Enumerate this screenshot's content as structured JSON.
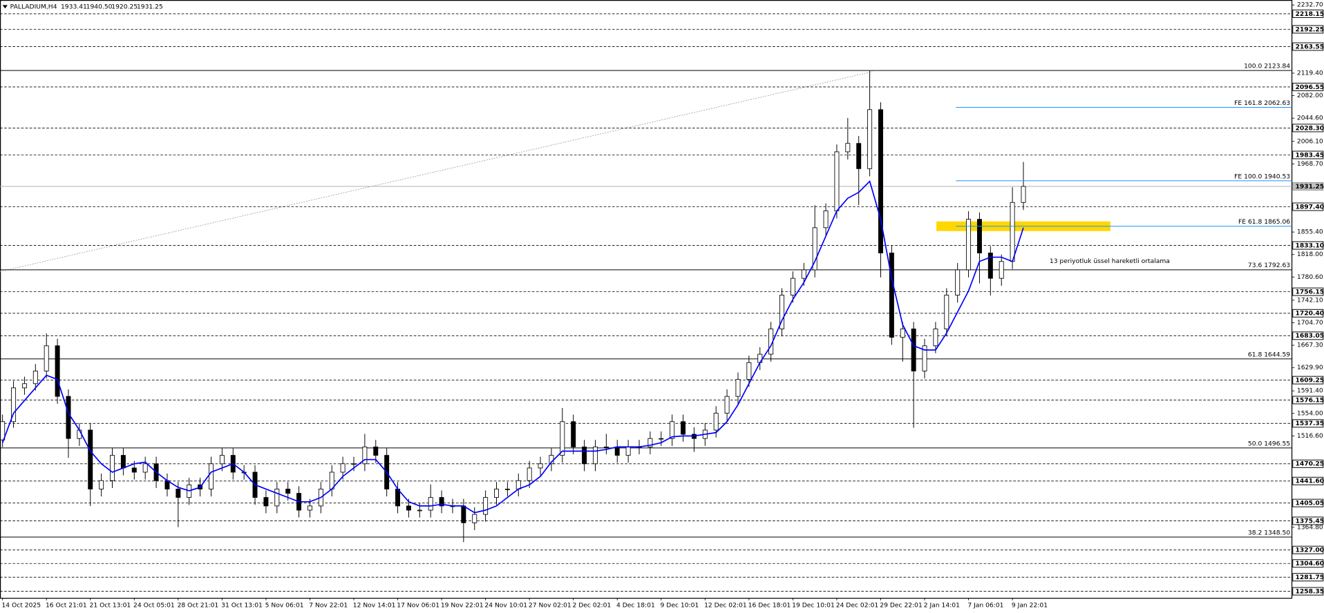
{
  "chart_data": {
    "type": "candlestick",
    "title": "PALLADIUM,H4",
    "header_values": [
      {
        "value": 1933.41,
        "label": "1933.41"
      },
      {
        "value": 1940.5,
        "label": "1940.50"
      },
      {
        "value": 1920.25,
        "label": "1920.25"
      },
      {
        "value": 1931.25,
        "label": "1931.25"
      }
    ],
    "categories": [
      "14 Oct 2025",
      null,
      null,
      null,
      "16 Oct 21:01",
      null,
      null,
      null,
      "21 Oct 13:01",
      null,
      null,
      null,
      "24 Oct 05:01",
      null,
      null,
      null,
      "28 Oct 21:01",
      null,
      null,
      null,
      "31 Oct 13:01",
      null,
      null,
      null,
      "5 Nov 06:01",
      null,
      null,
      null,
      "7 Nov 22:01",
      null,
      null,
      null,
      "12 Nov 14:01",
      null,
      null,
      null,
      "17 Nov 06:01",
      null,
      null,
      null,
      "19 Nov 22:01",
      null,
      null,
      null,
      "24 Nov 10:01",
      null,
      null,
      null,
      "27 Nov 02:01",
      null,
      null,
      null,
      "2 Dec 02:01",
      null,
      null,
      null,
      "4 Dec 18:01",
      null,
      null,
      null,
      "9 Dec 10:01",
      null,
      null,
      null,
      "12 Dec 02:01",
      null,
      null,
      null,
      "16 Dec 18:01",
      null,
      null,
      null,
      "19 Dec 10:01",
      null,
      null,
      null,
      "24 Dec 02:01",
      null,
      null,
      null,
      "29 Dec 22:01",
      null,
      null,
      null,
      "2 Jan 14:01",
      null,
      null,
      null,
      "7 Jan 06:01",
      null,
      null,
      null,
      "9 Jan 22:01",
      null
    ],
    "open": [
      1510,
      1540.3,
      1596.4,
      1603.4,
      1624.4,
      1666.4,
      1582.3,
      1512.3,
      1526.3,
      1428.3,
      1442.3,
      1484.3,
      1463.3,
      1456.3,
      1470.3,
      1442.3,
      1428.3,
      1414.3,
      1435.3,
      1428.3,
      1470.3,
      1484.3,
      1456.3,
      1456.3,
      1414.3,
      1400.2,
      1428.3,
      1421.2,
      1393.2,
      1400.2,
      1428.3,
      1456.3,
      1470.3,
      1470.3,
      1498.3,
      1484.3,
      1428.3,
      1400.2,
      1393.2,
      1393.2,
      1414.3,
      1400.2,
      1400.2,
      1372.2,
      1386.2,
      1414.3,
      1428.3,
      1428.3,
      1442.3,
      1463.3,
      1470.3,
      1484.3,
      1540.3,
      1498.3,
      1470.3,
      1498.3,
      1498.3,
      1484.3,
      1498.3,
      1498.3,
      1512.3,
      1512.3,
      1540.3,
      1519.3,
      1512.3,
      1526.3,
      1554.3,
      1582.3,
      1610.4,
      1638.4,
      1652.4,
      1694.4,
      1750.5,
      1778.5,
      1792.5,
      1862.6,
      1890.6,
      1988.7,
      2002.7,
      1960.7,
      2058.8,
      1820.6,
      1680.4,
      1694.4,
      1624.4,
      1666.4,
      1694.4,
      1750.5,
      1792.5,
      1876.6,
      1820.6,
      1778.5,
      1806.5,
      1904.6
    ],
    "high": [
      1552,
      1608,
      1615,
      1636,
      1687,
      1678,
      1594,
      1538,
      1538,
      1454,
      1496,
      1496,
      1475,
      1482,
      1482,
      1454,
      1440,
      1447,
      1447,
      1482,
      1496,
      1496,
      1468,
      1468,
      1426,
      1440,
      1440,
      1433,
      1412,
      1440,
      1468,
      1482,
      1482,
      1520,
      1510,
      1496,
      1440,
      1412,
      1405,
      1436,
      1426,
      1412,
      1412,
      1398,
      1426,
      1440,
      1440,
      1454,
      1475,
      1482,
      1496,
      1563,
      1552,
      1510,
      1510,
      1520,
      1510,
      1510,
      1510,
      1524,
      1524,
      1552,
      1552,
      1531,
      1538,
      1566,
      1594,
      1622,
      1650,
      1664,
      1706,
      1762,
      1790,
      1804,
      1900,
      1903,
      2001,
      2045,
      2015,
      2124,
      2071,
      1833,
      1706,
      1706,
      1678,
      1706,
      1762,
      1804,
      1890,
      1888,
      1832,
      1818,
      1930,
      1972
    ],
    "low": [
      1498,
      1530,
      1585,
      1592,
      1612,
      1570,
      1480,
      1500,
      1400,
      1416,
      1430,
      1451,
      1444,
      1444,
      1430,
      1416,
      1365,
      1402,
      1416,
      1416,
      1458,
      1444,
      1444,
      1402,
      1388,
      1388,
      1409,
      1381,
      1381,
      1388,
      1416,
      1444,
      1458,
      1458,
      1472,
      1416,
      1388,
      1381,
      1381,
      1381,
      1388,
      1388,
      1340,
      1360,
      1374,
      1402,
      1416,
      1416,
      1430,
      1451,
      1458,
      1472,
      1486,
      1458,
      1458,
      1486,
      1472,
      1472,
      1486,
      1486,
      1500,
      1500,
      1507,
      1490,
      1500,
      1514,
      1542,
      1570,
      1598,
      1626,
      1640,
      1682,
      1738,
      1766,
      1780,
      1850,
      1878,
      1976,
      1900,
      1948,
      1780,
      1668,
      1640,
      1530,
      1612,
      1654,
      1682,
      1738,
      1780,
      1770,
      1750,
      1766,
      1794,
      1892
    ],
    "close": [
      1540.3,
      1596.4,
      1603.4,
      1624.4,
      1666.4,
      1582.3,
      1512.3,
      1526.3,
      1428.3,
      1442.3,
      1484.3,
      1463.3,
      1456.3,
      1470.3,
      1442.3,
      1428.3,
      1414.3,
      1435.3,
      1428.3,
      1470.3,
      1484.3,
      1456.3,
      1456.3,
      1414.3,
      1400.2,
      1428.3,
      1421.2,
      1393.2,
      1400.2,
      1428.3,
      1456.3,
      1470.3,
      1470.3,
      1498.3,
      1484.3,
      1428.3,
      1400.2,
      1393.2,
      1393.2,
      1414.3,
      1400.2,
      1400.2,
      1372.2,
      1386.2,
      1414.3,
      1428.3,
      1428.3,
      1442.3,
      1463.3,
      1470.3,
      1484.3,
      1540.3,
      1498.3,
      1470.3,
      1498.3,
      1498.3,
      1484.3,
      1498.3,
      1498.3,
      1512.3,
      1512.3,
      1540.3,
      1519.3,
      1512.3,
      1526.3,
      1554.3,
      1582.3,
      1610.4,
      1638.4,
      1652.4,
      1694.4,
      1750.5,
      1778.5,
      1792.5,
      1862.6,
      1890.6,
      1988.7,
      2002.7,
      1960.7,
      2058.8,
      1820.6,
      1680.4,
      1694.4,
      1624.4,
      1666.4,
      1694.4,
      1750.5,
      1792.5,
      1876.6,
      1820.6,
      1778.5,
      1806.5,
      1904.6,
      1931.25
    ],
    "candle_color": "#000000",
    "ema": {
      "name": "13 periyotluk üssel hareketli ortalama",
      "color": "#0000ff",
      "values": [
        1505.3,
        1554.3,
        1575.4,
        1596.4,
        1617.4,
        1610.4,
        1554.3,
        1526.3,
        1491.3,
        1470.3,
        1456.3,
        1463.3,
        1470.3,
        1473.1,
        1456.3,
        1442.3,
        1431.1,
        1425.4,
        1431.1,
        1456.3,
        1463.3,
        1470.3,
        1456.3,
        1435.3,
        1428.3,
        1421.2,
        1414.3,
        1407.2,
        1407.2,
        1414.3,
        1428.3,
        1449.3,
        1463.3,
        1477.3,
        1477.3,
        1456.3,
        1428.3,
        1407.2,
        1400.2,
        1400.2,
        1403.0,
        1400.2,
        1400.2,
        1389.0,
        1393.2,
        1400.2,
        1414.3,
        1428.3,
        1435.3,
        1449.3,
        1473.1,
        1491.3,
        1491.3,
        1491.3,
        1491.3,
        1494.1,
        1498.3,
        1498.3,
        1498.3,
        1501.1,
        1505.3,
        1515.1,
        1516.5,
        1516.5,
        1519.3,
        1522.1,
        1540.3,
        1568.4,
        1603.4,
        1638.4,
        1666.4,
        1708.5,
        1743.5,
        1771.5,
        1806.5,
        1848.6,
        1890.6,
        1911.6,
        1921.4,
        1939.7,
        1876.6,
        1778.5,
        1701.5,
        1666.4,
        1659.4,
        1659.4,
        1687.4,
        1722.5,
        1757.5,
        1806.5,
        1813.6,
        1813.6,
        1806.5,
        1862.6
      ]
    },
    "ylim": [
      1247.5,
      2241
    ],
    "yticks": [
      {
        "value": 2232.7,
        "label": "2232.70"
      },
      {
        "value": 2119.4,
        "label": "2119.40"
      },
      {
        "value": 2082,
        "label": "2082.00"
      },
      {
        "value": 2044.6,
        "label": "2044.60"
      },
      {
        "value": 2006.1,
        "label": "2006.10"
      },
      {
        "value": 1968.7,
        "label": "1968.70"
      },
      {
        "value": 1855.4,
        "label": "1855.40"
      },
      {
        "value": 1818,
        "label": "1818.00"
      },
      {
        "value": 1780.6,
        "label": "1780.60"
      },
      {
        "value": 1742.1,
        "label": "1742.10"
      },
      {
        "value": 1704.7,
        "label": "1704.70"
      },
      {
        "value": 1667.3,
        "label": "1667.30"
      },
      {
        "value": 1629.9,
        "label": "1629.90"
      },
      {
        "value": 1591.4,
        "label": "1591.40"
      },
      {
        "value": 1554,
        "label": "1554.00"
      },
      {
        "value": 1516.6,
        "label": "1516.60"
      },
      {
        "value": 1364.8,
        "label": "1364.80"
      }
    ],
    "levels": [
      {
        "value": 2218.15,
        "label": "2218.15"
      },
      {
        "value": 2192.25,
        "label": "2192.25"
      },
      {
        "value": 2163.55,
        "label": "2163.55"
      },
      {
        "value": 2096.55,
        "label": "2096.55"
      },
      {
        "value": 2028.3,
        "label": "2028.30"
      },
      {
        "value": 1983.45,
        "label": "1983.45"
      },
      {
        "value": 1897.4,
        "label": "1897.40"
      },
      {
        "value": 1833.1,
        "label": "1833.10"
      },
      {
        "value": 1756.15,
        "label": "1756.15"
      },
      {
        "value": 1720.4,
        "label": "1720.40"
      },
      {
        "value": 1683.05,
        "label": "1683.05"
      },
      {
        "value": 1609.25,
        "label": "1609.25"
      },
      {
        "value": 1576.15,
        "label": "1576.15"
      },
      {
        "value": 1537.35,
        "label": "1537.35"
      },
      {
        "value": 1470.25,
        "label": "1470.25"
      },
      {
        "value": 1441.6,
        "label": "1441.60"
      },
      {
        "value": 1405.05,
        "label": "1405.05"
      },
      {
        "value": 1375.45,
        "label": "1375.45"
      },
      {
        "value": 1327,
        "label": "1327.00"
      },
      {
        "value": 1304.6,
        "label": "1304.60"
      },
      {
        "value": 1281.75,
        "label": "1281.75"
      },
      {
        "value": 1258.35,
        "label": "1258.35"
      }
    ],
    "last_price": {
      "value": 1931.25,
      "label": "1931.25"
    },
    "fibo": {
      "color": "#000000",
      "levels": [
        {
          "value": 2123.84,
          "label": "100.0 2123.84"
        },
        {
          "value": 1792.63,
          "label": "73.6 1792.63"
        },
        {
          "value": 1644.59,
          "label": "61.8 1644.59"
        },
        {
          "value": 1496.55,
          "label": "50.0 1496.55"
        },
        {
          "value": 1348.5,
          "label": "38.2 1348.50"
        }
      ]
    },
    "fibo_expansion": {
      "color": "#1e90ff",
      "levels": [
        {
          "value": 2062.63,
          "label": "FE 161.8 2062.63"
        },
        {
          "value": 1940.53,
          "label": "FE 100.0 1940.53"
        },
        {
          "value": 1865.06,
          "label": "FE 61.8 1865.06"
        }
      ]
    },
    "zone": {
      "color": "#ffd700",
      "range": [
        1857,
        1873
      ]
    }
  }
}
